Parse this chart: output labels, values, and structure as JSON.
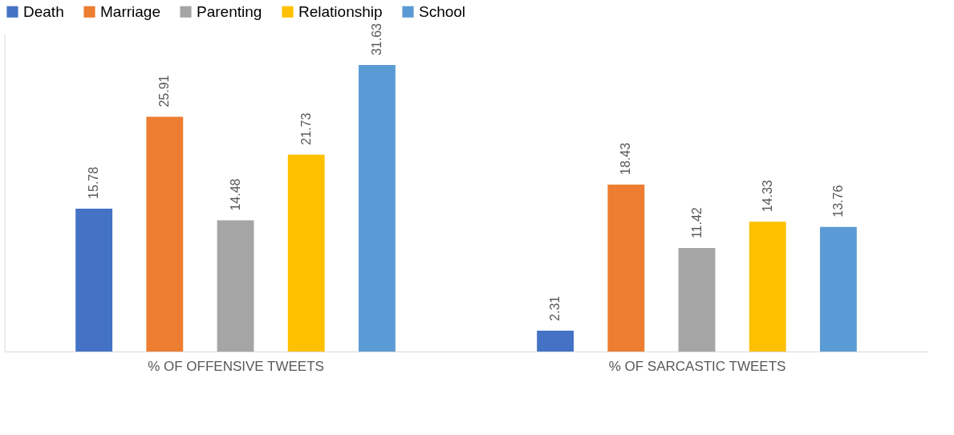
{
  "chart_data": {
    "type": "bar",
    "categories": [
      "% OF OFFENSIVE TWEETS",
      "% OF SARCASTIC TWEETS"
    ],
    "series": [
      {
        "name": "Death",
        "color": "#4472c4",
        "values": [
          15.78,
          2.31
        ]
      },
      {
        "name": "Marriage",
        "color": "#ed7d31",
        "values": [
          25.91,
          18.43
        ]
      },
      {
        "name": "Parenting",
        "color": "#a5a5a5",
        "values": [
          14.48,
          11.42
        ]
      },
      {
        "name": "Relationship",
        "color": "#ffc000",
        "values": [
          21.73,
          14.33
        ]
      },
      {
        "name": "School",
        "color": "#5b9bd5",
        "values": [
          31.63,
          13.76
        ]
      }
    ],
    "data_labels": true,
    "legend": "top",
    "grid": false,
    "tick_labels": "x"
  }
}
